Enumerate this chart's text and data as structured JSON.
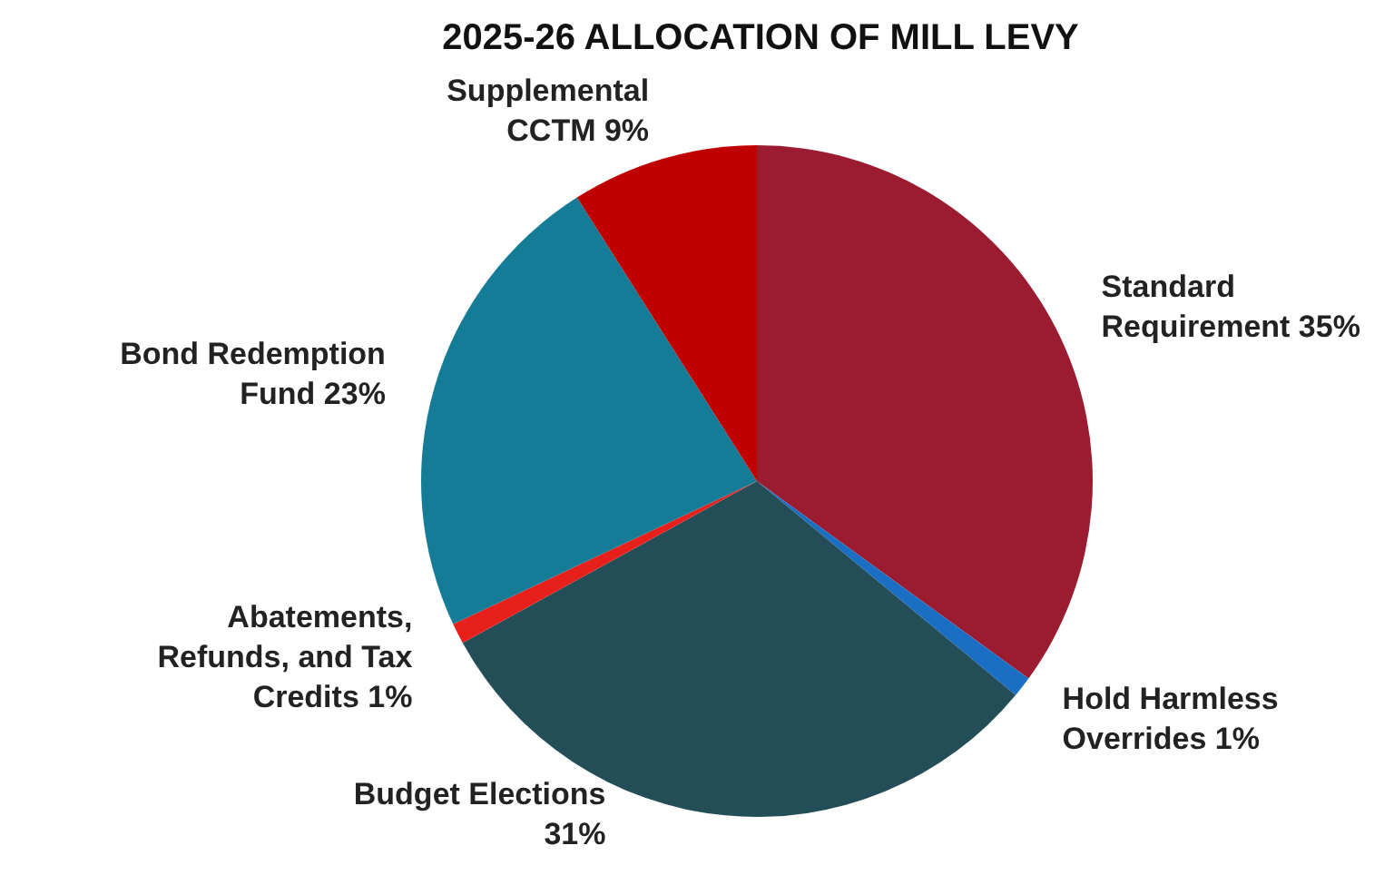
{
  "chart_data": {
    "type": "pie",
    "title": "2025-26 ALLOCATION OF MILL LEVY",
    "categories": [
      "Standard Requirement",
      "Hold Harmless Overrides",
      "Budget Elections",
      "Abatements, Refunds, and Tax Credits",
      "Bond Redemption Fund",
      "Supplemental CCTM"
    ],
    "values": [
      35,
      1,
      31,
      1,
      23,
      9
    ],
    "value_labels": [
      "35%",
      "1%",
      "31%",
      "1%",
      "23%",
      "9%"
    ],
    "colors": [
      "#9b1b30",
      "#1a6fc4",
      "#234e58",
      "#e8201c",
      "#147c96",
      "#c00000"
    ],
    "legend": false
  }
}
